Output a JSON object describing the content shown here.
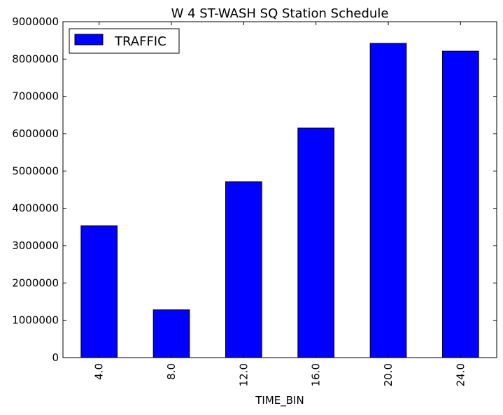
{
  "chart_data": {
    "type": "bar",
    "title": "W 4 ST-WASH SQ Station Schedule",
    "xlabel": "TIME_BIN",
    "ylabel": "",
    "categories": [
      "4.0",
      "8.0",
      "12.0",
      "16.0",
      "20.0",
      "24.0"
    ],
    "series": [
      {
        "name": "TRAFFIC",
        "values": [
          3530000,
          1280000,
          4710000,
          6150000,
          8420000,
          8210000
        ]
      }
    ],
    "ylim": [
      0,
      9000000
    ],
    "yticks": [
      0,
      1000000,
      2000000,
      3000000,
      4000000,
      5000000,
      6000000,
      7000000,
      8000000,
      9000000
    ],
    "ytick_labels": [
      "0",
      "1000000",
      "2000000",
      "3000000",
      "4000000",
      "5000000",
      "6000000",
      "7000000",
      "8000000",
      "9000000"
    ],
    "bar_color": "#0000ff",
    "edge_color": "#000000",
    "grid": false,
    "legend_position": "top-left",
    "xtick_rotation": "vertical"
  }
}
